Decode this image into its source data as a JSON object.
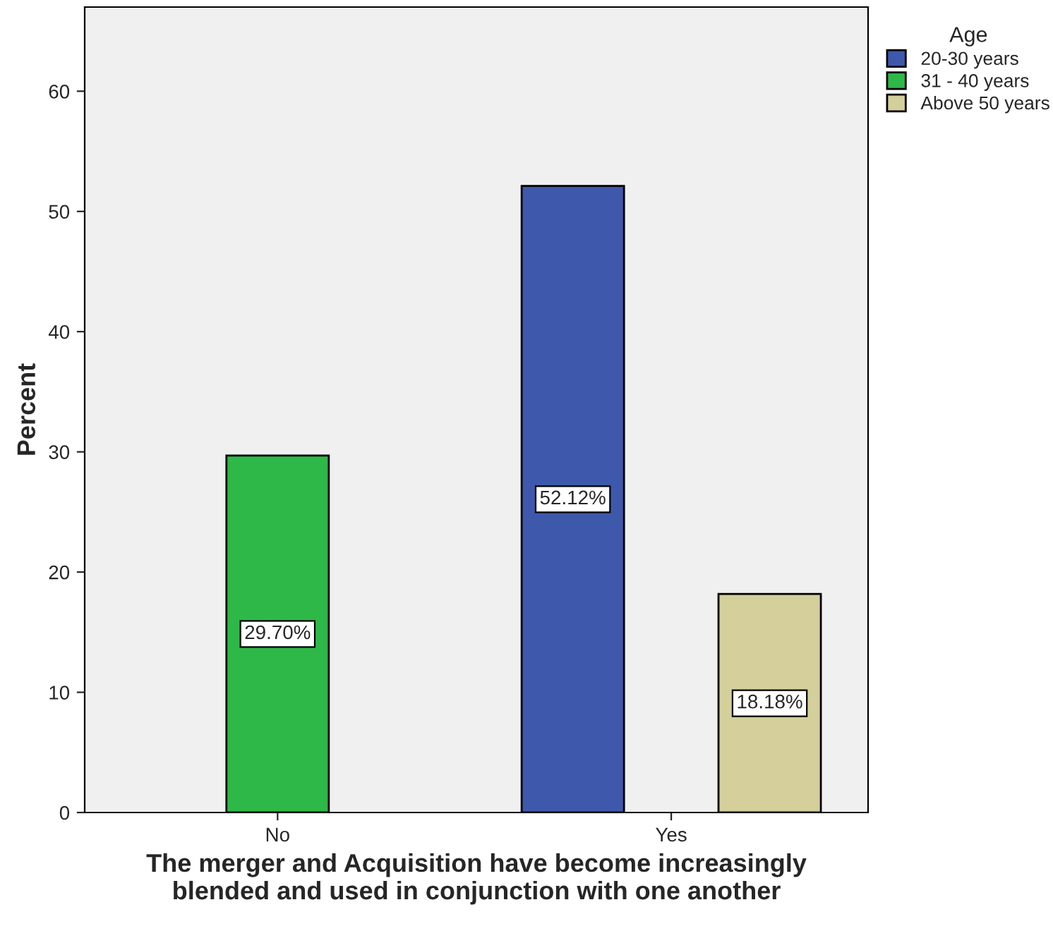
{
  "chart_data": {
    "type": "bar",
    "xlabel": "The merger and Acquisition have become increasingly\nblended and used in conjunction with one another",
    "ylabel": "Percent",
    "legend_title": "Age",
    "categories": [
      "No",
      "Yes"
    ],
    "series": [
      {
        "name": "20-30 years",
        "color": "#3e58ac",
        "values": [
          null,
          52.12
        ],
        "value_labels": [
          null,
          "52.12%"
        ]
      },
      {
        "name": "31 - 40 years",
        "color": "#2eb848",
        "values": [
          29.7,
          null
        ],
        "value_labels": [
          "29.70%",
          null
        ]
      },
      {
        "name": "Above 50 years",
        "color": "#d4cf9b",
        "values": [
          null,
          18.18
        ],
        "value_labels": [
          null,
          "18.18%"
        ]
      }
    ],
    "ylim": [
      0,
      67
    ],
    "yticks": [
      0,
      10,
      20,
      30,
      40,
      50,
      60
    ],
    "grid": false,
    "legend": "right"
  }
}
